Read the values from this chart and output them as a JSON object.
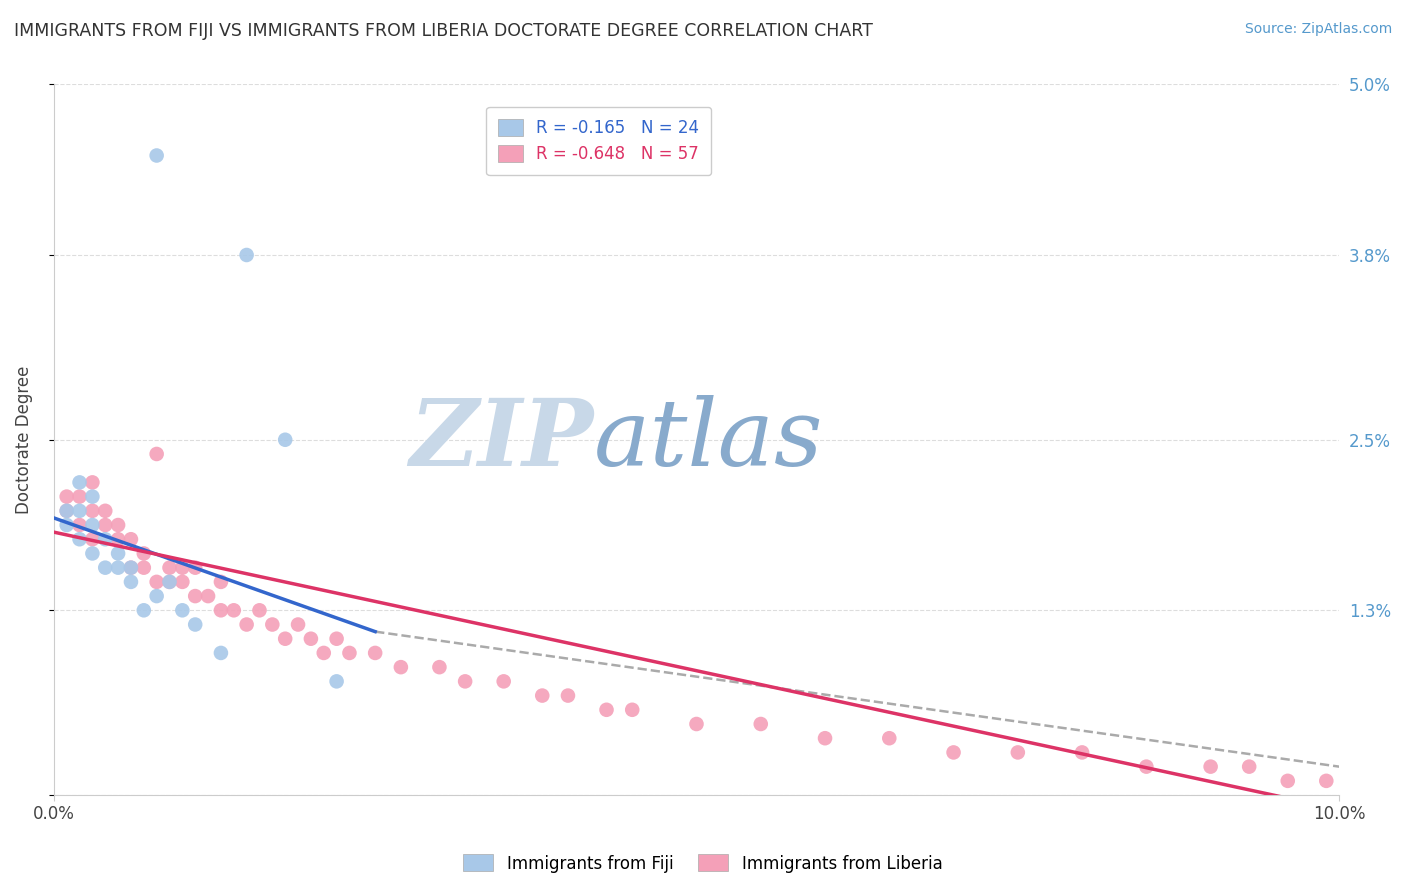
{
  "title": "IMMIGRANTS FROM FIJI VS IMMIGRANTS FROM LIBERIA DOCTORATE DEGREE CORRELATION CHART",
  "source": "Source: ZipAtlas.com",
  "ylabel": "Doctorate Degree",
  "xlim": [
    0.0,
    0.1
  ],
  "ylim": [
    0.0,
    0.05
  ],
  "ytick_vals": [
    0.0,
    0.013,
    0.025,
    0.038,
    0.05
  ],
  "ytick_labels_right": [
    "",
    "1.3%",
    "2.5%",
    "3.8%",
    "5.0%"
  ],
  "fiji_R": -0.165,
  "fiji_N": 24,
  "liberia_R": -0.648,
  "liberia_N": 57,
  "fiji_color": "#a8c8e8",
  "liberia_color": "#f4a0b8",
  "fiji_line_color": "#3366cc",
  "liberia_line_color": "#dd3366",
  "dashed_line_color": "#aaaaaa",
  "watermark_zip_color": "#c8d8e8",
  "watermark_atlas_color": "#88aacc",
  "legend_fiji_label": "Immigrants from Fiji",
  "legend_liberia_label": "Immigrants from Liberia",
  "fiji_scatter_x": [
    0.001,
    0.001,
    0.002,
    0.002,
    0.002,
    0.003,
    0.003,
    0.003,
    0.004,
    0.004,
    0.005,
    0.005,
    0.006,
    0.006,
    0.007,
    0.008,
    0.008,
    0.009,
    0.01,
    0.011,
    0.013,
    0.015,
    0.018,
    0.022
  ],
  "fiji_scatter_y": [
    0.019,
    0.02,
    0.018,
    0.02,
    0.022,
    0.017,
    0.019,
    0.021,
    0.016,
    0.018,
    0.016,
    0.017,
    0.015,
    0.016,
    0.013,
    0.045,
    0.014,
    0.015,
    0.013,
    0.012,
    0.01,
    0.038,
    0.025,
    0.008
  ],
  "liberia_scatter_x": [
    0.001,
    0.001,
    0.002,
    0.002,
    0.003,
    0.003,
    0.003,
    0.004,
    0.004,
    0.005,
    0.005,
    0.006,
    0.006,
    0.007,
    0.007,
    0.008,
    0.008,
    0.009,
    0.009,
    0.01,
    0.01,
    0.011,
    0.011,
    0.012,
    0.013,
    0.013,
    0.014,
    0.015,
    0.016,
    0.017,
    0.018,
    0.019,
    0.02,
    0.021,
    0.022,
    0.023,
    0.025,
    0.027,
    0.03,
    0.032,
    0.035,
    0.038,
    0.04,
    0.043,
    0.045,
    0.05,
    0.055,
    0.06,
    0.065,
    0.07,
    0.075,
    0.08,
    0.085,
    0.09,
    0.093,
    0.096,
    0.099
  ],
  "liberia_scatter_y": [
    0.02,
    0.021,
    0.019,
    0.021,
    0.018,
    0.02,
    0.022,
    0.019,
    0.02,
    0.018,
    0.019,
    0.016,
    0.018,
    0.016,
    0.017,
    0.015,
    0.024,
    0.015,
    0.016,
    0.015,
    0.016,
    0.014,
    0.016,
    0.014,
    0.013,
    0.015,
    0.013,
    0.012,
    0.013,
    0.012,
    0.011,
    0.012,
    0.011,
    0.01,
    0.011,
    0.01,
    0.01,
    0.009,
    0.009,
    0.008,
    0.008,
    0.007,
    0.007,
    0.006,
    0.006,
    0.005,
    0.005,
    0.004,
    0.004,
    0.003,
    0.003,
    0.003,
    0.002,
    0.002,
    0.002,
    0.001,
    0.001
  ],
  "fiji_line_x0": 0.0,
  "fiji_line_y0": 0.0195,
  "fiji_line_x1": 0.025,
  "fiji_line_y1": 0.0115,
  "liberia_line_x0": 0.0,
  "liberia_line_y0": 0.0185,
  "liberia_line_x1": 0.1,
  "liberia_line_y1": -0.001,
  "dash_line_x0": 0.025,
  "dash_line_y0": 0.0115,
  "dash_line_x1": 0.1,
  "dash_line_y1": 0.002,
  "background_color": "#ffffff",
  "grid_color": "#dddddd"
}
